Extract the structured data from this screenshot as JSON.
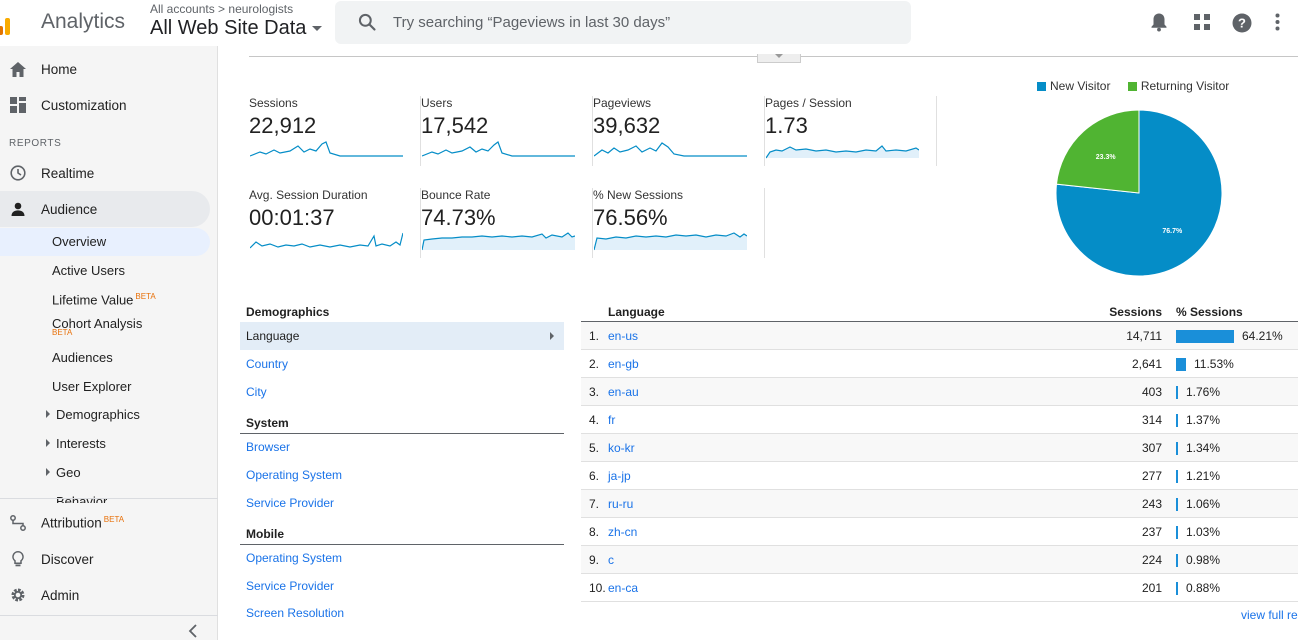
{
  "header": {
    "app_name": "Analytics",
    "breadcrumb_accounts": "All accounts",
    "breadcrumb_sep": ">",
    "breadcrumb_account": "neurologists",
    "property": "All Web Site Data",
    "search_placeholder": "Try searching “Pageviews in last 30 days”"
  },
  "sidebar": {
    "home": "Home",
    "customization": "Customization",
    "reports_label": "REPORTS",
    "realtime": "Realtime",
    "audience": "Audience",
    "sub": {
      "overview": "Overview",
      "active_users": "Active Users",
      "lifetime_value": "Lifetime Value",
      "cohort_analysis": "Cohort Analysis",
      "audiences": "Audiences",
      "user_explorer": "User Explorer",
      "demographics": "Demographics",
      "interests": "Interests",
      "geo": "Geo",
      "behavior": "Behavior"
    },
    "beta": "BETA",
    "attribution": "Attribution",
    "discover": "Discover",
    "admin": "Admin"
  },
  "metrics": [
    {
      "label": "Sessions",
      "value": "22,912"
    },
    {
      "label": "Users",
      "value": "17,542"
    },
    {
      "label": "Pageviews",
      "value": "39,632"
    },
    {
      "label": "Pages / Session",
      "value": "1.73"
    },
    {
      "label": "Avg. Session Duration",
      "value": "00:01:37"
    },
    {
      "label": "Bounce Rate",
      "value": "74.73%"
    },
    {
      "label": "% New Sessions",
      "value": "76.56%"
    }
  ],
  "pie": {
    "legend_new": "New Visitor",
    "legend_returning": "Returning Visitor",
    "new_pct": 76.7,
    "returning_pct": 23.3,
    "new_label": "76.7%",
    "returning_label": "23.3%",
    "color_new": "#058dc7",
    "color_returning": "#50b432"
  },
  "dimensions": {
    "demographics": "Demographics",
    "language": "Language",
    "country": "Country",
    "city": "City",
    "system": "System",
    "browser": "Browser",
    "os": "Operating System",
    "service_provider": "Service Provider",
    "mobile": "Mobile",
    "mobile_os": "Operating System",
    "mobile_sp": "Service Provider",
    "screen_res": "Screen Resolution"
  },
  "table": {
    "col_language": "Language",
    "col_sessions": "Sessions",
    "col_pct": "% Sessions",
    "rows": [
      {
        "n": "1.",
        "lang": "en-us",
        "sessions": "14,711",
        "pct": "64.21%",
        "frac": 0.6421
      },
      {
        "n": "2.",
        "lang": "en-gb",
        "sessions": "2,641",
        "pct": "11.53%",
        "frac": 0.1153
      },
      {
        "n": "3.",
        "lang": "en-au",
        "sessions": "403",
        "pct": "1.76%",
        "frac": 0.0176
      },
      {
        "n": "4.",
        "lang": "fr",
        "sessions": "314",
        "pct": "1.37%",
        "frac": 0.0137
      },
      {
        "n": "5.",
        "lang": "ko-kr",
        "sessions": "307",
        "pct": "1.34%",
        "frac": 0.0134
      },
      {
        "n": "6.",
        "lang": "ja-jp",
        "sessions": "277",
        "pct": "1.21%",
        "frac": 0.0121
      },
      {
        "n": "7.",
        "lang": "ru-ru",
        "sessions": "243",
        "pct": "1.06%",
        "frac": 0.0106
      },
      {
        "n": "8.",
        "lang": "zh-cn",
        "sessions": "237",
        "pct": "1.03%",
        "frac": 0.0103
      },
      {
        "n": "9.",
        "lang": "c",
        "sessions": "224",
        "pct": "0.98%",
        "frac": 0.0098
      },
      {
        "n": "10.",
        "lang": "en-ca",
        "sessions": "201",
        "pct": "0.88%",
        "frac": 0.0088
      }
    ],
    "view_full": "view full re"
  }
}
